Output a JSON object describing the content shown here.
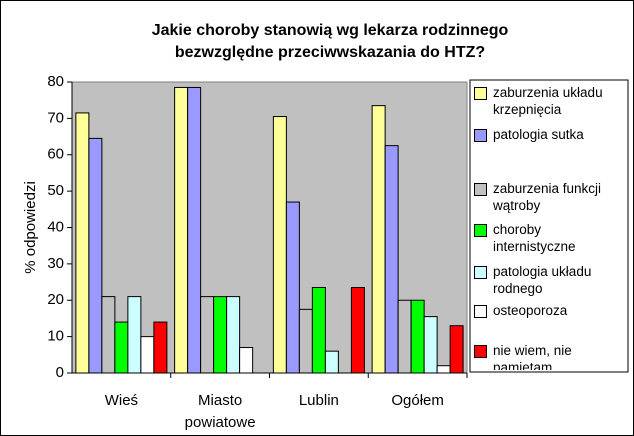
{
  "chart_data": {
    "type": "bar",
    "title": [
      "Jakie choroby stanowią wg lekarza rodzinnego",
      "bezwzględne przeciwwskazania do HTZ?"
    ],
    "y_label": "% odpowiedzi",
    "categories": [
      "Wieś",
      "Miasto powiatowe",
      "Lublin",
      "Ogółem"
    ],
    "series": [
      {
        "name": "zaburzenia układu krzepnięcia",
        "color": "#ffff99",
        "values": [
          71.5,
          78.5,
          70.5,
          73.5
        ]
      },
      {
        "name": "patologia sutka",
        "color": "#9999ff",
        "values": [
          64.5,
          78.5,
          47,
          62.5
        ]
      },
      {
        "name": "zaburzenia funkcji wątroby",
        "color": "#c0c0c0",
        "values": [
          21,
          21,
          17.5,
          20
        ]
      },
      {
        "name": "choroby internistyczne",
        "color": "#00ff00",
        "values": [
          14,
          21,
          23.5,
          20
        ]
      },
      {
        "name": "patologia układu rodnego",
        "color": "#ccffff",
        "values": [
          21,
          21,
          6,
          15.5
        ]
      },
      {
        "name": "osteoporoza",
        "color": "#ffffff",
        "values": [
          10,
          7,
          0,
          2
        ]
      },
      {
        "name": "nie wiem, nie pamiętam",
        "color": "#ff0000",
        "values": [
          14,
          0,
          23.5,
          13
        ]
      }
    ],
    "ylim": [
      0,
      80
    ],
    "yticks": [
      0,
      10,
      20,
      30,
      40,
      50,
      60,
      70,
      80
    ],
    "plot_background": "#c0c0c0",
    "legend": "right"
  }
}
